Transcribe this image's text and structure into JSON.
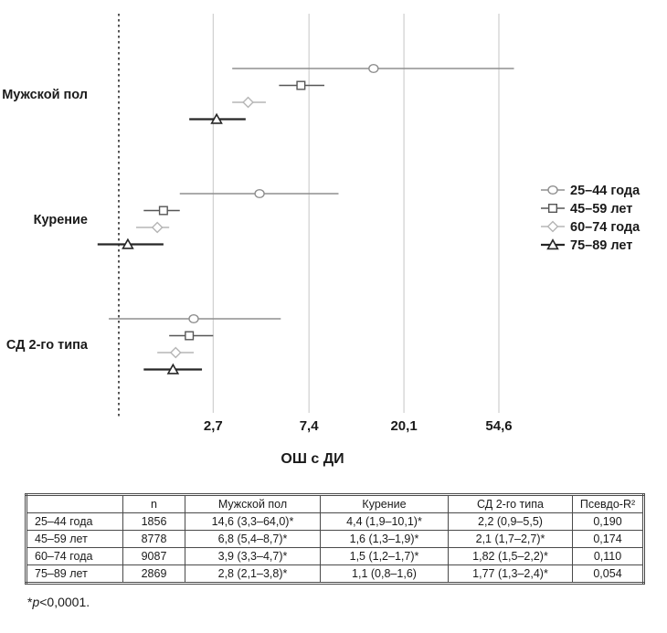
{
  "chart_data": {
    "type": "forest",
    "xlabel": "ОШ с ДИ",
    "x_scale": "log",
    "x_ticks": [
      2.7,
      7.4,
      20.1,
      54.6
    ],
    "x_tick_labels": [
      "2,7",
      "7,4",
      "20,1",
      "54,6"
    ],
    "reference_line": 1,
    "grid": "vertical-on",
    "legend_position": "right",
    "colors": {
      "gridline": "#c6c6c6",
      "reference_line": "#2b2b2b",
      "text": "#1a1a1a"
    },
    "series": [
      {
        "label": "25–44 года",
        "marker": "circle",
        "color": "#8f8f8f",
        "line_width": 1.4
      },
      {
        "label": "45–59 лет",
        "marker": "square",
        "color": "#565656",
        "line_width": 1.4
      },
      {
        "label": "60–74 года",
        "marker": "diamond",
        "color": "#b5b5b5",
        "line_width": 1.4
      },
      {
        "label": "75–89 лет",
        "marker": "triangle",
        "color": "#262626",
        "line_width": 2.2
      }
    ],
    "groups": [
      {
        "label": "Мужской пол",
        "estimates": [
          {
            "series": "25–44 года",
            "or": 14.6,
            "ci_low": 3.3,
            "ci_high": 64.0
          },
          {
            "series": "45–59 лет",
            "or": 6.8,
            "ci_low": 5.4,
            "ci_high": 8.7
          },
          {
            "series": "60–74 года",
            "or": 3.9,
            "ci_low": 3.3,
            "ci_high": 4.7
          },
          {
            "series": "75–89 лет",
            "or": 2.8,
            "ci_low": 2.1,
            "ci_high": 3.8
          }
        ]
      },
      {
        "label": "Курение",
        "estimates": [
          {
            "series": "25–44 года",
            "or": 4.4,
            "ci_low": 1.9,
            "ci_high": 10.1
          },
          {
            "series": "45–59 лет",
            "or": 1.6,
            "ci_low": 1.3,
            "ci_high": 1.9
          },
          {
            "series": "60–74 года",
            "or": 1.5,
            "ci_low": 1.2,
            "ci_high": 1.7
          },
          {
            "series": "75–89 лет",
            "or": 1.1,
            "ci_low": 0.8,
            "ci_high": 1.6
          }
        ]
      },
      {
        "label": "СД 2-го типа",
        "estimates": [
          {
            "series": "25–44 года",
            "or": 2.2,
            "ci_low": 0.9,
            "ci_high": 5.5
          },
          {
            "series": "45–59 лет",
            "or": 2.1,
            "ci_low": 1.7,
            "ci_high": 2.7
          },
          {
            "series": "60–74 года",
            "or": 1.82,
            "ci_low": 1.5,
            "ci_high": 2.2
          },
          {
            "series": "75–89 лет",
            "or": 1.77,
            "ci_low": 1.3,
            "ci_high": 2.4
          }
        ]
      }
    ]
  },
  "table": {
    "headers": [
      "",
      "n",
      "Мужской пол",
      "Курение",
      "СД 2-го типа",
      "Псевдо-R²"
    ],
    "rows": [
      [
        "25–44 года",
        "1856",
        "14,6 (3,3–64,0)*",
        "4,4 (1,9–10,1)*",
        "2,2 (0,9–5,5)",
        "0,190"
      ],
      [
        "45–59 лет",
        "8778",
        "6,8 (5,4–8,7)*",
        "1,6 (1,3–1,9)*",
        "2,1 (1,7–2,7)*",
        "0,174"
      ],
      [
        "60–74 года",
        "9087",
        "3,9 (3,3–4,7)*",
        "1,5 (1,2–1,7)*",
        "1,82 (1,5–2,2)*",
        "0,110"
      ],
      [
        "75–89 лет",
        "2869",
        "2,8 (2,1–3,8)*",
        "1,1 (0,8–1,6)",
        "1,77 (1,3–2,4)*",
        "0,054"
      ]
    ]
  },
  "footnote": {
    "star": "*",
    "p": "p",
    "value": "<0,0001."
  }
}
